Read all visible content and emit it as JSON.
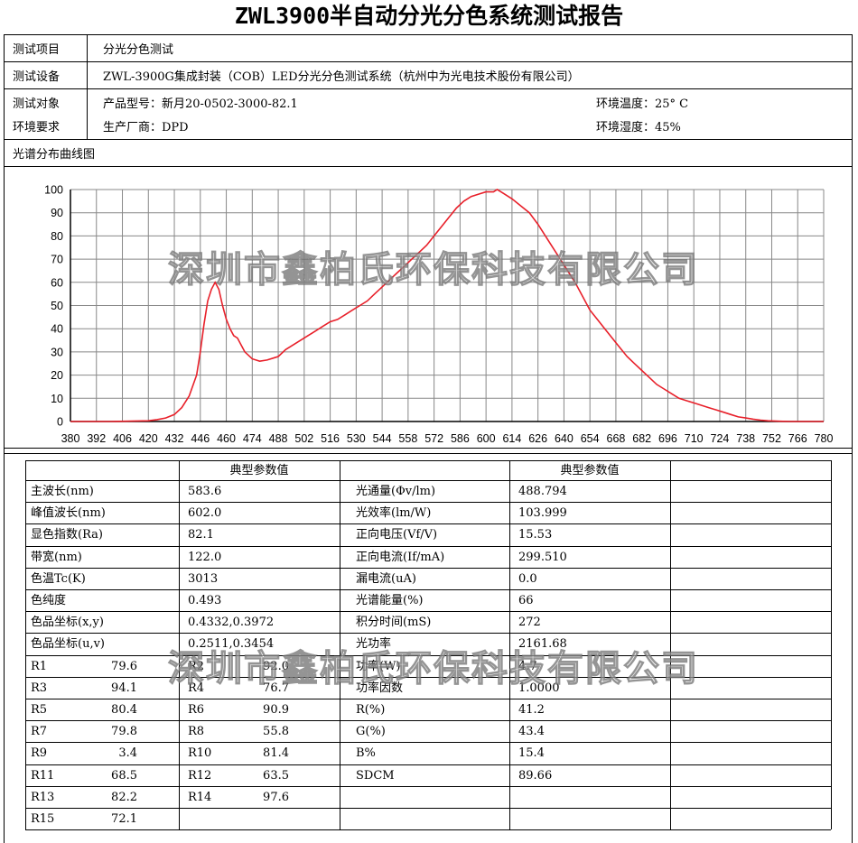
{
  "title": "ZWL3900半自动分光分色系统测试报告",
  "header": {
    "item_label": "测试项目",
    "item_value": "分光分色测试",
    "device_label": "测试设备",
    "device_value": "ZWL-3900G集成封装（COB）LED分光分色测试系统（杭州中为光电技术股份有限公司）",
    "object_label": "测试对象",
    "env_label": "环境要求",
    "model": "产品型号：新月20-0502-3000-82.1",
    "maker": "生产厂商：DPD",
    "temp": "环境温度：25° C",
    "humidity": "环境湿度：45%"
  },
  "spectrum_label": "光谱分布曲线图",
  "watermark": "深圳市鑫柏氏环保科技有限公司",
  "chart_data": {
    "type": "line",
    "title": "",
    "xlabel": "",
    "ylabel": "",
    "xlim": [
      380,
      780
    ],
    "ylim": [
      0,
      100
    ],
    "x_ticks": [
      "380",
      "392",
      "406",
      "420",
      "432",
      "446",
      "460",
      "474",
      "488",
      "502",
      "516",
      "530",
      "544",
      "558",
      "572",
      "586",
      "600",
      "614",
      "626",
      "640",
      "654",
      "668",
      "682",
      "696",
      "710",
      "724",
      "738",
      "752",
      "766",
      "780"
    ],
    "y_ticks": [
      "0",
      "10",
      "20",
      "30",
      "40",
      "50",
      "60",
      "70",
      "80",
      "90",
      "100"
    ],
    "grid": true,
    "line_color": "#e8202a",
    "series": [
      {
        "x": [
          380,
          400,
          420,
          424,
          428,
          432,
          436,
          440,
          444,
          446,
          448,
          450,
          452,
          454,
          456,
          458,
          460,
          462,
          464,
          466,
          468,
          470,
          474,
          478,
          482,
          486,
          488,
          492,
          496,
          500,
          504,
          508,
          512,
          516,
          520,
          524,
          528,
          532,
          536,
          540,
          544,
          548,
          552,
          556,
          560,
          564,
          568,
          572,
          576,
          580,
          584,
          588,
          592,
          596,
          600,
          604,
          606,
          610,
          614,
          618,
          622,
          626,
          630,
          634,
          638,
          642,
          646,
          650,
          654,
          658,
          662,
          666,
          670,
          674,
          678,
          682,
          686,
          690,
          694,
          698,
          702,
          706,
          710,
          714,
          718,
          722,
          726,
          730,
          734,
          738,
          742,
          746,
          750,
          756,
          762,
          770,
          780
        ],
        "y": [
          0,
          0,
          0.3,
          0.8,
          1.5,
          3,
          6,
          11,
          20,
          30,
          42,
          52,
          57,
          60,
          57,
          50,
          44,
          40,
          37,
          36,
          33,
          30,
          27,
          26,
          26.5,
          27.5,
          28,
          31,
          33,
          35,
          37,
          39,
          41,
          43,
          44,
          46,
          48,
          50,
          52,
          55,
          58,
          61,
          64,
          67,
          70,
          73,
          76,
          80,
          84,
          88,
          92,
          95,
          97,
          98,
          99,
          99,
          100,
          98,
          96,
          93,
          90,
          85,
          80,
          75,
          70,
          65,
          60,
          54,
          48,
          44,
          40,
          36,
          32,
          28,
          25,
          22,
          19,
          16,
          14,
          12,
          10,
          9,
          8,
          7,
          6,
          5,
          4,
          3,
          2,
          1.5,
          1,
          0.6,
          0.3,
          0.1,
          0,
          0,
          0
        ]
      }
    ]
  },
  "params": {
    "col_header": "典型参数值",
    "left": [
      {
        "label": "主波长(nm)",
        "value": "583.6"
      },
      {
        "label": "峰值波长(nm)",
        "value": "602.0"
      },
      {
        "label": "显色指数(Ra)",
        "value": "82.1"
      },
      {
        "label": "带宽(nm)",
        "value": "122.0"
      },
      {
        "label": "色温Tc(K)",
        "value": "3013"
      },
      {
        "label": "色纯度",
        "value": "0.493"
      },
      {
        "label": "色品坐标(x,y)",
        "value": "0.4332,0.3972"
      },
      {
        "label": "色品坐标(u,v)",
        "value": "0.2511,0.3454"
      }
    ],
    "right": [
      {
        "label": "光通量(Φv/lm)",
        "value": "488.794"
      },
      {
        "label": "光效率(lm/W)",
        "value": "103.999"
      },
      {
        "label": "正向电压(Vf/V)",
        "value": "15.53"
      },
      {
        "label": "正向电流(If/mA)",
        "value": "299.510"
      },
      {
        "label": "漏电流(uA)",
        "value": "0.0"
      },
      {
        "label": "光谱能量(%)",
        "value": "66"
      },
      {
        "label": "积分时间(mS)",
        "value": "272"
      },
      {
        "label": "光功率",
        "value": "2161.68"
      },
      {
        "label": "功率(W)",
        "value": "4.7"
      },
      {
        "label": "功率因数",
        "value": "1.0000"
      },
      {
        "label": "R(%)",
        "value": "41.2"
      },
      {
        "label": "G(%)",
        "value": "43.4"
      },
      {
        "label": "B%",
        "value": "15.4"
      },
      {
        "label": "SDCM",
        "value": "89.66"
      }
    ],
    "r_rows": [
      {
        "a_label": "R1",
        "a_value": "79.6",
        "b_label": "R2",
        "b_value": "92.0"
      },
      {
        "a_label": "R3",
        "a_value": "94.1",
        "b_label": "R4",
        "b_value": "76.7"
      },
      {
        "a_label": "R5",
        "a_value": "80.4",
        "b_label": "R6",
        "b_value": "90.9"
      },
      {
        "a_label": "R7",
        "a_value": "79.8",
        "b_label": "R8",
        "b_value": "55.8"
      },
      {
        "a_label": "R9",
        "a_value": "3.4",
        "b_label": "R10",
        "b_value": "81.4"
      },
      {
        "a_label": "R11",
        "a_value": "68.5",
        "b_label": "R12",
        "b_value": "63.5"
      },
      {
        "a_label": "R13",
        "a_value": "82.2",
        "b_label": "R14",
        "b_value": "97.6"
      },
      {
        "a_label": "R15",
        "a_value": "72.1",
        "b_label": "",
        "b_value": ""
      }
    ]
  }
}
